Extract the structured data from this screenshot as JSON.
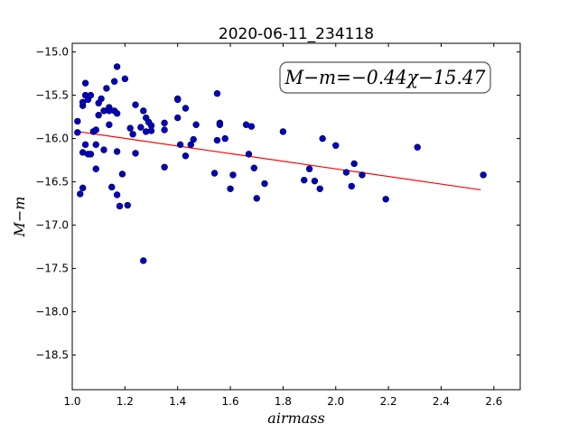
{
  "chart_data": {
    "type": "scatter",
    "title": "2020-06-11_234118",
    "xlabel": "airmass",
    "ylabel": "M−m",
    "xlim": [
      1.0,
      2.7
    ],
    "ylim": [
      -18.9,
      -14.9
    ],
    "y_inverted": true,
    "xticks": [
      1.0,
      1.2,
      1.4,
      1.6,
      1.8,
      2.0,
      2.2,
      2.4,
      2.6
    ],
    "xtick_labels": [
      "1.0",
      "1.2",
      "1.4",
      "1.6",
      "1.8",
      "2.0",
      "2.2",
      "2.4",
      "2.6"
    ],
    "yticks": [
      -15.0,
      -15.5,
      -16.0,
      -16.5,
      -17.0,
      -17.5,
      -18.0,
      -18.5
    ],
    "ytick_labels": [
      "−15.0",
      "−15.5",
      "−16.0",
      "−16.5",
      "−17.0",
      "−17.5",
      "−18.0",
      "−18.5"
    ],
    "grid": false,
    "annotation": "M−m=−0.44χ−15.47",
    "fit": {
      "slope": -0.44,
      "intercept": -15.47,
      "x_range": [
        1.02,
        2.55
      ],
      "color": "#ff0000"
    },
    "marker_color": "#0000cc",
    "points": [
      [
        1.02,
        -15.8
      ],
      [
        1.02,
        -15.93
      ],
      [
        1.03,
        -16.64
      ],
      [
        1.04,
        -15.62
      ],
      [
        1.04,
        -15.58
      ],
      [
        1.04,
        -16.57
      ],
      [
        1.05,
        -16.07
      ],
      [
        1.04,
        -16.16
      ],
      [
        1.05,
        -15.36
      ],
      [
        1.05,
        -15.5
      ],
      [
        1.06,
        -15.55
      ],
      [
        1.07,
        -15.5
      ],
      [
        1.06,
        -16.18
      ],
      [
        1.07,
        -16.18
      ],
      [
        1.08,
        -15.92
      ],
      [
        1.09,
        -15.9
      ],
      [
        1.09,
        -16.07
      ],
      [
        1.09,
        -16.35
      ],
      [
        1.1,
        -15.73
      ],
      [
        1.1,
        -15.59
      ],
      [
        1.11,
        -15.54
      ],
      [
        1.12,
        -15.68
      ],
      [
        1.12,
        -16.13
      ],
      [
        1.13,
        -15.42
      ],
      [
        1.14,
        -15.64
      ],
      [
        1.14,
        -15.84
      ],
      [
        1.14,
        -15.68
      ],
      [
        1.15,
        -16.56
      ],
      [
        1.16,
        -15.34
      ],
      [
        1.16,
        -15.68
      ],
      [
        1.17,
        -15.17
      ],
      [
        1.17,
        -15.71
      ],
      [
        1.17,
        -16.15
      ],
      [
        1.17,
        -16.65
      ],
      [
        1.18,
        -16.78
      ],
      [
        1.19,
        -16.41
      ],
      [
        1.2,
        -15.31
      ],
      [
        1.21,
        -16.77
      ],
      [
        1.22,
        -15.88
      ],
      [
        1.23,
        -15.95
      ],
      [
        1.24,
        -15.61
      ],
      [
        1.24,
        -16.17
      ],
      [
        1.26,
        -15.87
      ],
      [
        1.27,
        -17.41
      ],
      [
        1.27,
        -15.68
      ],
      [
        1.28,
        -15.92
      ],
      [
        1.28,
        -15.76
      ],
      [
        1.29,
        -15.81
      ],
      [
        1.3,
        -15.85
      ],
      [
        1.3,
        -15.91
      ],
      [
        1.35,
        -15.82
      ],
      [
        1.35,
        -15.9
      ],
      [
        1.35,
        -16.33
      ],
      [
        1.4,
        -15.54
      ],
      [
        1.4,
        -15.55
      ],
      [
        1.4,
        -15.76
      ],
      [
        1.41,
        -16.07
      ],
      [
        1.43,
        -15.65
      ],
      [
        1.43,
        -16.2
      ],
      [
        1.45,
        -16.07
      ],
      [
        1.46,
        -16.01
      ],
      [
        1.47,
        -15.84
      ],
      [
        1.54,
        -16.4
      ],
      [
        1.55,
        -16.02
      ],
      [
        1.55,
        -15.48
      ],
      [
        1.56,
        -15.82
      ],
      [
        1.56,
        -15.84
      ],
      [
        1.58,
        -16.0
      ],
      [
        1.6,
        -16.58
      ],
      [
        1.61,
        -16.42
      ],
      [
        1.66,
        -15.84
      ],
      [
        1.67,
        -16.18
      ],
      [
        1.68,
        -15.86
      ],
      [
        1.69,
        -16.34
      ],
      [
        1.7,
        -16.69
      ],
      [
        1.73,
        -16.52
      ],
      [
        1.8,
        -15.92
      ],
      [
        1.88,
        -16.48
      ],
      [
        1.9,
        -16.35
      ],
      [
        1.92,
        -16.49
      ],
      [
        1.94,
        -16.58
      ],
      [
        1.95,
        -16.0
      ],
      [
        2.0,
        -16.08
      ],
      [
        2.04,
        -16.39
      ],
      [
        2.06,
        -16.55
      ],
      [
        2.07,
        -16.29
      ],
      [
        2.1,
        -16.42
      ],
      [
        2.19,
        -16.7
      ],
      [
        2.31,
        -16.1
      ],
      [
        2.56,
        -16.42
      ]
    ]
  }
}
